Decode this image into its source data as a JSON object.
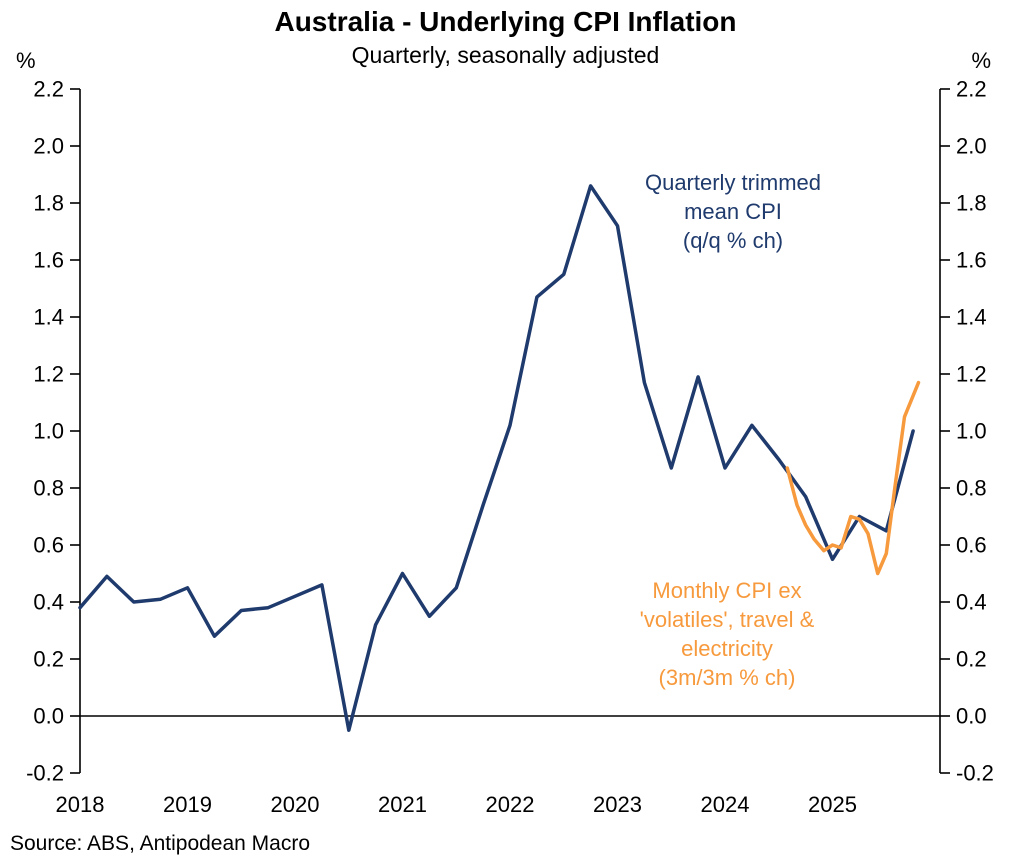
{
  "chart_data": {
    "type": "line",
    "title": "Australia - Underlying CPI Inflation",
    "subtitle": "Quarterly, seasonally adjusted",
    "y_unit": "%",
    "source": "Source: ABS, Antipodean Macro",
    "xlim": [
      2018,
      2026
    ],
    "ylim": [
      -0.2,
      2.2
    ],
    "grid": false,
    "legend_position": "inline-annotations",
    "y_ticks": [
      "2.2",
      "2.0",
      "1.8",
      "1.6",
      "1.4",
      "1.2",
      "1.0",
      "0.8",
      "0.6",
      "0.4",
      "0.2",
      "0.0",
      "-0.2"
    ],
    "x_ticks": [
      "2018",
      "2019",
      "2020",
      "2021",
      "2022",
      "2023",
      "2024",
      "2025"
    ],
    "series": [
      {
        "name": "Quarterly trimmed mean CPI (q/q % ch)",
        "annotation": "Quarterly trimmed\nmean CPI\n(q/q % ch)",
        "color": "#1f3a6d",
        "x": [
          2018.0,
          2018.25,
          2018.5,
          2018.75,
          2019.0,
          2019.25,
          2019.5,
          2019.75,
          2020.0,
          2020.25,
          2020.5,
          2020.75,
          2021.0,
          2021.25,
          2021.5,
          2021.75,
          2022.0,
          2022.25,
          2022.5,
          2022.75,
          2023.0,
          2023.25,
          2023.5,
          2023.75,
          2024.0,
          2024.25,
          2024.5,
          2024.75,
          2025.0,
          2025.25,
          2025.5,
          2025.75
        ],
        "values": [
          0.38,
          0.49,
          0.4,
          0.41,
          0.45,
          0.28,
          0.37,
          0.38,
          0.42,
          0.46,
          -0.05,
          0.32,
          0.5,
          0.35,
          0.45,
          0.74,
          1.02,
          1.47,
          1.55,
          1.86,
          1.72,
          1.17,
          0.87,
          1.19,
          0.87,
          1.02,
          0.9,
          0.77,
          0.55,
          0.7,
          0.65,
          1.0
        ]
      },
      {
        "name": "Monthly CPI ex 'volatiles', travel & electricity (3m/3m % ch)",
        "annotation": "Monthly CPI ex\n'volatiles', travel &\nelectricity\n(3m/3m % ch)",
        "color": "#f79a3d",
        "x": [
          2024.58,
          2024.67,
          2024.75,
          2024.83,
          2024.92,
          2025.0,
          2025.08,
          2025.17,
          2025.25,
          2025.33,
          2025.42,
          2025.5,
          2025.58,
          2025.67,
          2025.8
        ],
        "values": [
          0.87,
          0.74,
          0.67,
          0.62,
          0.58,
          0.6,
          0.59,
          0.7,
          0.69,
          0.64,
          0.5,
          0.57,
          0.8,
          1.05,
          1.17
        ]
      }
    ]
  }
}
